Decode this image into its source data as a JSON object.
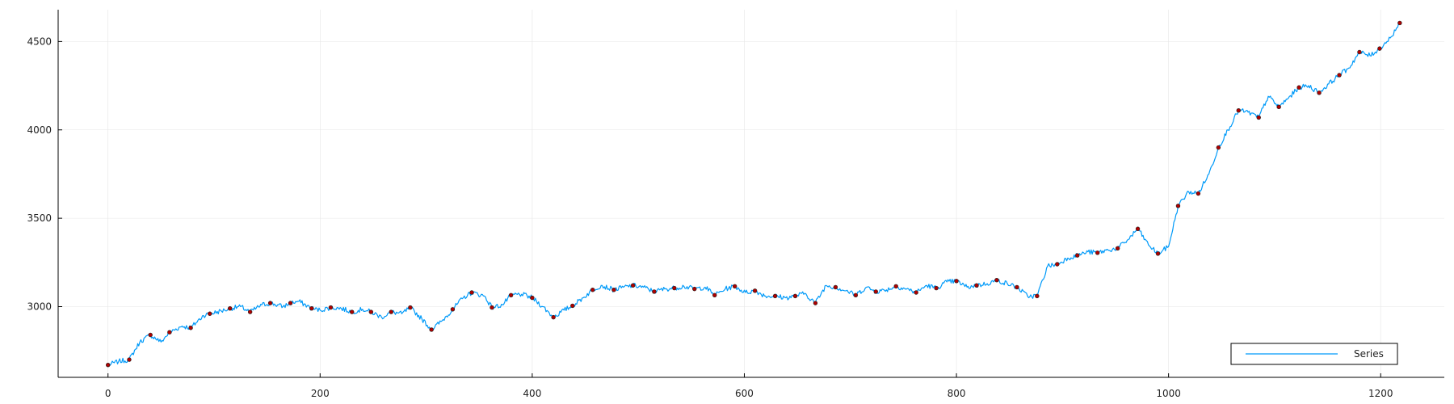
{
  "chart_data": {
    "type": "line",
    "title": "",
    "xlabel": "",
    "ylabel": "",
    "xlim": [
      -47,
      1260
    ],
    "ylim": [
      2600,
      4680
    ],
    "x_ticks": [
      0,
      200,
      400,
      600,
      800,
      1000,
      1200
    ],
    "y_ticks": [
      3000,
      3500,
      4000,
      4500
    ],
    "grid": true,
    "legend_position": "bottom-right",
    "series": [
      {
        "name": "Series",
        "color": "#009af9",
        "anchors": [
          [
            0,
            2670
          ],
          [
            10,
            2690
          ],
          [
            20,
            2700
          ],
          [
            30,
            2800
          ],
          [
            40,
            2840
          ],
          [
            50,
            2800
          ],
          [
            58,
            2855
          ],
          [
            70,
            2890
          ],
          [
            78,
            2880
          ],
          [
            90,
            2950
          ],
          [
            96,
            2960
          ],
          [
            110,
            2980
          ],
          [
            115,
            2990
          ],
          [
            125,
            3000
          ],
          [
            134,
            2970
          ],
          [
            145,
            3010
          ],
          [
            153,
            3020
          ],
          [
            165,
            3000
          ],
          [
            172,
            3020
          ],
          [
            180,
            3030
          ],
          [
            192,
            2990
          ],
          [
            200,
            2980
          ],
          [
            210,
            2995
          ],
          [
            220,
            2990
          ],
          [
            230,
            2970
          ],
          [
            240,
            2985
          ],
          [
            248,
            2970
          ],
          [
            258,
            2940
          ],
          [
            267,
            2970
          ],
          [
            277,
            2960
          ],
          [
            285,
            2995
          ],
          [
            296,
            2930
          ],
          [
            305,
            2870
          ],
          [
            315,
            2920
          ],
          [
            325,
            2985
          ],
          [
            335,
            3050
          ],
          [
            343,
            3080
          ],
          [
            355,
            3060
          ],
          [
            362,
            2995
          ],
          [
            372,
            3010
          ],
          [
            380,
            3065
          ],
          [
            390,
            3070
          ],
          [
            400,
            3050
          ],
          [
            410,
            3000
          ],
          [
            420,
            2940
          ],
          [
            430,
            2980
          ],
          [
            438,
            3005
          ],
          [
            448,
            3050
          ],
          [
            457,
            3095
          ],
          [
            465,
            3120
          ],
          [
            477,
            3095
          ],
          [
            486,
            3110
          ],
          [
            495,
            3120
          ],
          [
            505,
            3110
          ],
          [
            515,
            3085
          ],
          [
            525,
            3100
          ],
          [
            534,
            3105
          ],
          [
            543,
            3115
          ],
          [
            553,
            3100
          ],
          [
            563,
            3110
          ],
          [
            572,
            3065
          ],
          [
            582,
            3100
          ],
          [
            591,
            3115
          ],
          [
            601,
            3080
          ],
          [
            610,
            3090
          ],
          [
            620,
            3060
          ],
          [
            629,
            3060
          ],
          [
            639,
            3050
          ],
          [
            648,
            3060
          ],
          [
            657,
            3075
          ],
          [
            667,
            3020
          ],
          [
            677,
            3120
          ],
          [
            686,
            3110
          ],
          [
            696,
            3090
          ],
          [
            705,
            3065
          ],
          [
            715,
            3110
          ],
          [
            724,
            3085
          ],
          [
            734,
            3095
          ],
          [
            743,
            3115
          ],
          [
            753,
            3100
          ],
          [
            762,
            3080
          ],
          [
            772,
            3120
          ],
          [
            781,
            3105
          ],
          [
            791,
            3140
          ],
          [
            800,
            3145
          ],
          [
            810,
            3110
          ],
          [
            819,
            3120
          ],
          [
            829,
            3130
          ],
          [
            838,
            3150
          ],
          [
            848,
            3130
          ],
          [
            857,
            3110
          ],
          [
            867,
            3060
          ],
          [
            876,
            3060
          ],
          [
            886,
            3230
          ],
          [
            895,
            3240
          ],
          [
            905,
            3275
          ],
          [
            914,
            3290
          ],
          [
            924,
            3310
          ],
          [
            933,
            3305
          ],
          [
            943,
            3320
          ],
          [
            952,
            3330
          ],
          [
            962,
            3380
          ],
          [
            971,
            3440
          ],
          [
            981,
            3350
          ],
          [
            990,
            3300
          ],
          [
            1000,
            3340
          ],
          [
            1009,
            3570
          ],
          [
            1019,
            3650
          ],
          [
            1028,
            3640
          ],
          [
            1038,
            3750
          ],
          [
            1047,
            3900
          ],
          [
            1056,
            4000
          ],
          [
            1066,
            4110
          ],
          [
            1075,
            4100
          ],
          [
            1085,
            4070
          ],
          [
            1094,
            4190
          ],
          [
            1104,
            4130
          ],
          [
            1113,
            4180
          ],
          [
            1123,
            4240
          ],
          [
            1132,
            4250
          ],
          [
            1142,
            4210
          ],
          [
            1151,
            4260
          ],
          [
            1161,
            4310
          ],
          [
            1170,
            4350
          ],
          [
            1180,
            4440
          ],
          [
            1190,
            4420
          ],
          [
            1199,
            4460
          ],
          [
            1209,
            4520
          ],
          [
            1218,
            4605
          ]
        ],
        "noise": 14
      }
    ],
    "markers": {
      "color": "#b00000",
      "points": [
        [
          0,
          2670
        ],
        [
          20,
          2700
        ],
        [
          40,
          2840
        ],
        [
          58,
          2855
        ],
        [
          78,
          2880
        ],
        [
          96,
          2960
        ],
        [
          115,
          2990
        ],
        [
          134,
          2970
        ],
        [
          153,
          3020
        ],
        [
          172,
          3020
        ],
        [
          192,
          2990
        ],
        [
          210,
          2995
        ],
        [
          230,
          2970
        ],
        [
          248,
          2970
        ],
        [
          267,
          2970
        ],
        [
          285,
          2995
        ],
        [
          305,
          2870
        ],
        [
          325,
          2985
        ],
        [
          343,
          3080
        ],
        [
          362,
          2995
        ],
        [
          380,
          3065
        ],
        [
          400,
          3050
        ],
        [
          420,
          2940
        ],
        [
          438,
          3005
        ],
        [
          457,
          3095
        ],
        [
          477,
          3095
        ],
        [
          495,
          3120
        ],
        [
          515,
          3085
        ],
        [
          534,
          3105
        ],
        [
          553,
          3100
        ],
        [
          572,
          3065
        ],
        [
          591,
          3115
        ],
        [
          610,
          3090
        ],
        [
          629,
          3060
        ],
        [
          648,
          3060
        ],
        [
          667,
          3020
        ],
        [
          686,
          3110
        ],
        [
          705,
          3065
        ],
        [
          724,
          3085
        ],
        [
          743,
          3115
        ],
        [
          762,
          3080
        ],
        [
          781,
          3105
        ],
        [
          800,
          3145
        ],
        [
          819,
          3120
        ],
        [
          838,
          3150
        ],
        [
          857,
          3110
        ],
        [
          876,
          3060
        ],
        [
          895,
          3240
        ],
        [
          914,
          3290
        ],
        [
          933,
          3305
        ],
        [
          952,
          3330
        ],
        [
          971,
          3440
        ],
        [
          990,
          3300
        ],
        [
          1009,
          3570
        ],
        [
          1028,
          3640
        ],
        [
          1047,
          3900
        ],
        [
          1066,
          4110
        ],
        [
          1085,
          4070
        ],
        [
          1104,
          4130
        ],
        [
          1123,
          4240
        ],
        [
          1142,
          4210
        ],
        [
          1161,
          4310
        ],
        [
          1180,
          4440
        ],
        [
          1199,
          4460
        ],
        [
          1218,
          4605
        ]
      ]
    }
  }
}
